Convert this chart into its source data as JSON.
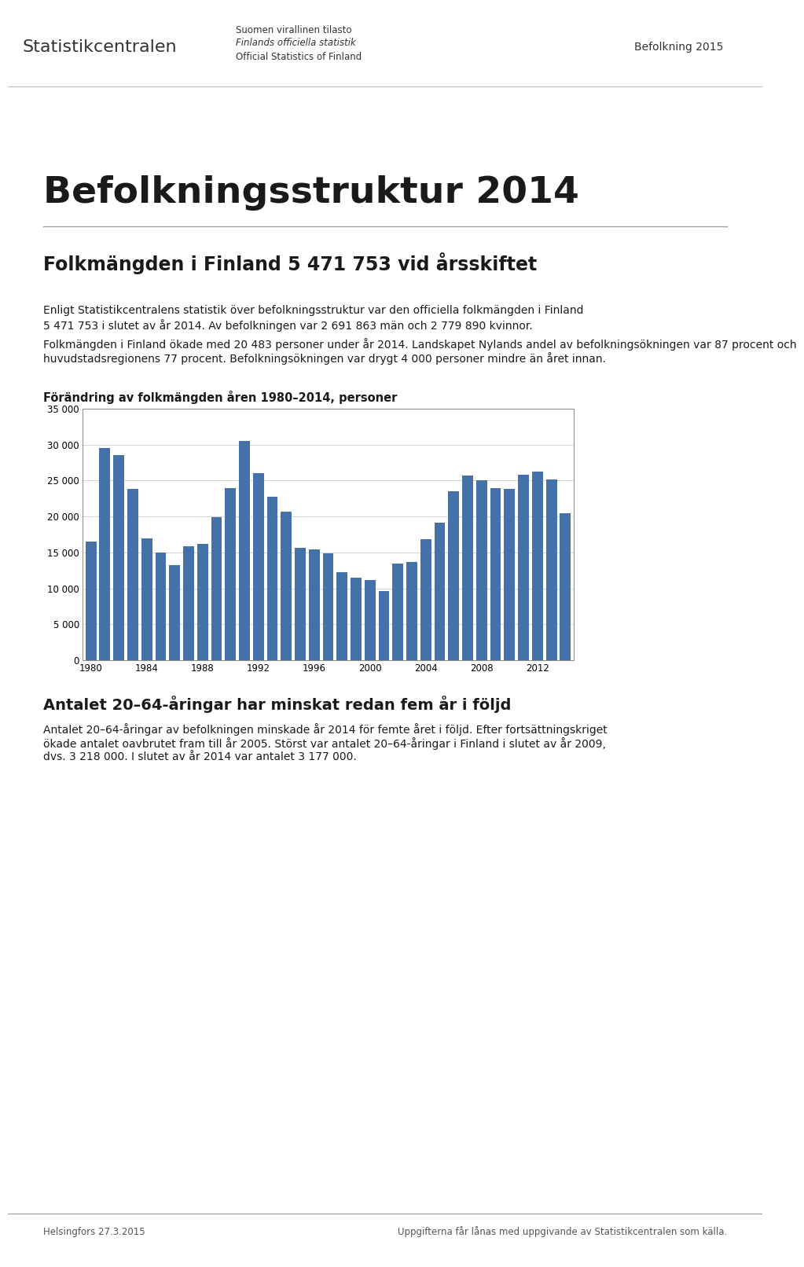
{
  "title_main": "Befolkningsstruktur 2014",
  "subtitle": "Folkmängden i Finland 5 471 753 vid årsskiftet",
  "body_text_1a": "Enligt Statistikcentralens statistik över befolkningsstruktur var den officiella folkmängden i Finland",
  "body_text_1b": "5 471 753 i slutet av år 2014. Av befolkningen var 2 691 863 män och 2 779 890 kvinnor.",
  "body_text_2a": "Folkmängden i Finland ökade med 20 483 personer under år 2014. Landskapet Nylands andel av befolkningsökningen var 87 procent och huvudstadsregionens 77 procent. Befolkningsökningen",
  "body_text_2b": "var drygt 4 000 personer mindre än året innan.",
  "chart_title": "Förändring av folkmängden åren 1980–2014, personer",
  "section2_title": "Antalet 20–64-åringar har minskat redan fem år i följd",
  "section2_body_1": "Antalet 20–64-åringar av befolkningen minskade år 2014 för femte året i följd. Efter fortsättningskriget",
  "section2_body_2": "ökade antalet oavbrutet fram till år 2005. Störst var antalet 20–64-åringar i Finland i slutet av år 2009,",
  "section2_body_3": "dvs. 3 218 000. I slutet av år 2014 var antalet 3 177 000.",
  "header_right": "Befolkning 2015",
  "header_org1": "Suomen virallinen tilasto",
  "header_org2": "Finlands officiella statistik",
  "header_org3": "Official Statistics of Finland",
  "footer_left": "Helsingfors 27.3.2015",
  "footer_right": "Uppgifterna får lånas med uppgivande av Statistikcentralen som källa.",
  "years": [
    1980,
    1981,
    1982,
    1983,
    1984,
    1985,
    1986,
    1987,
    1988,
    1989,
    1990,
    1991,
    1992,
    1993,
    1994,
    1995,
    1996,
    1997,
    1998,
    1999,
    2000,
    2001,
    2002,
    2003,
    2004,
    2005,
    2006,
    2007,
    2008,
    2009,
    2010,
    2011,
    2012,
    2013,
    2014
  ],
  "values": [
    16500,
    29500,
    28500,
    23800,
    16900,
    15000,
    13200,
    15900,
    16200,
    19900,
    24000,
    30500,
    26000,
    22800,
    20700,
    15600,
    15400,
    14900,
    12300,
    11500,
    11200,
    9600,
    13500,
    13700,
    16800,
    19100,
    23500,
    25700,
    25100,
    24000,
    23800,
    25800,
    26200,
    25200,
    20500
  ],
  "bar_color": "#4472a8",
  "ylim": [
    0,
    35000
  ],
  "ytick_labels": [
    "0",
    "5 000",
    "10 000",
    "15 000",
    "20 000",
    "25 000",
    "30 000",
    "35 000"
  ],
  "ytick_values": [
    0,
    5000,
    10000,
    15000,
    20000,
    25000,
    30000,
    35000
  ],
  "xtick_labels": [
    "1980",
    "1984",
    "1988",
    "1992",
    "1996",
    "2000",
    "2004",
    "2008",
    "2012"
  ],
  "xtick_positions": [
    0,
    4,
    8,
    12,
    16,
    20,
    24,
    28,
    32
  ]
}
